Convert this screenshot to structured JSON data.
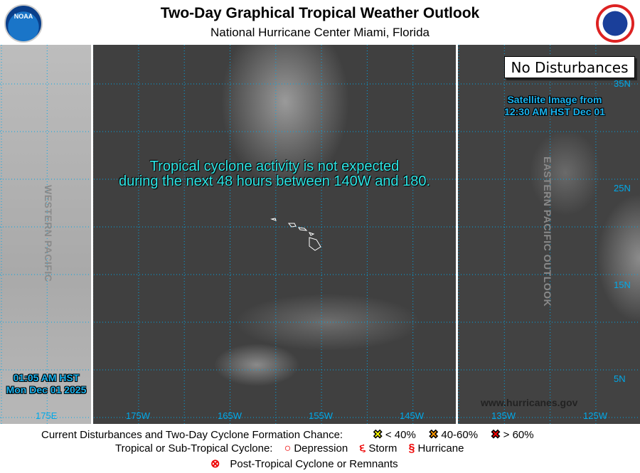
{
  "header": {
    "title": "Two-Day Graphical Tropical Weather Outlook",
    "subtitle": "National Hurricane Center  Miami, Florida",
    "left_logo": "NOAA",
    "right_logo": "NATIONAL WEATHER SERVICE"
  },
  "map": {
    "status_box": "No Disturbances",
    "message_line1": "Tropical cyclone activity is not expected",
    "message_line2": "during the next 48 hours between 140W and 180.",
    "satellite_line1": "Satellite Image from",
    "satellite_line2": "12:30 AM HST Dec 01",
    "issued_time": "01:05 AM HST",
    "issued_date": "Mon Dec 01 2025",
    "west_region": "WESTERN PACIFIC",
    "east_region": "EASTERN PACIFIC OUTLOOK",
    "website": "www.hurricanes.gov",
    "lon_labels": [
      "175E",
      "175W",
      "165W",
      "155W",
      "145W",
      "135W",
      "125W"
    ],
    "lat_labels": [
      "35N",
      "25N",
      "15N",
      "5N"
    ],
    "grid_color": "#00a8e8"
  },
  "legend": {
    "row1_label": "Current Disturbances and Two-Day Cyclone Formation Chance:",
    "low": "< 40%",
    "medium": "40-60%",
    "high": "> 60%",
    "low_color": "#ffff00",
    "medium_color": "#ff9900",
    "high_color": "#ff0000",
    "row2_label": "Tropical or Sub-Tropical Cyclone:",
    "depression": "Depression",
    "storm": "Storm",
    "hurricane": "Hurricane",
    "row3_label": "Post-Tropical Cyclone or Remnants"
  }
}
